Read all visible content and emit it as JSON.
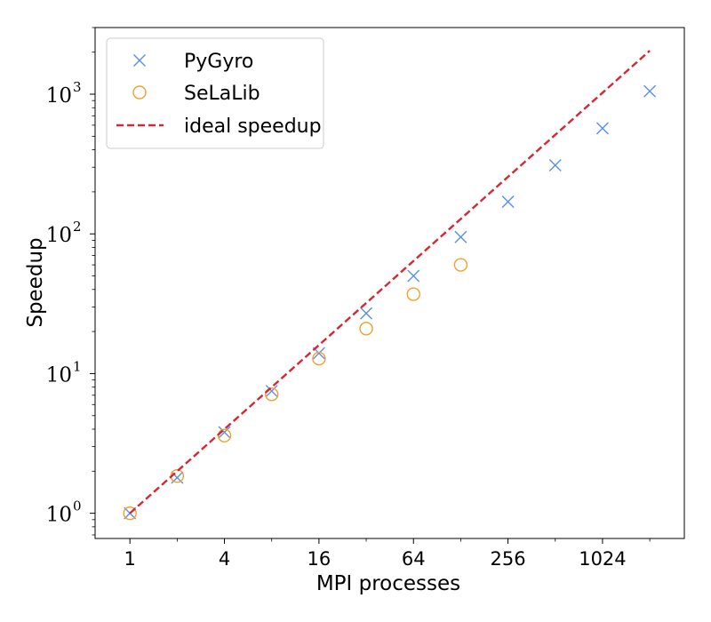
{
  "chart_data": {
    "type": "scatter",
    "title": "",
    "xlabel": "MPI processes",
    "ylabel": "Speedup",
    "x_scale": "log2",
    "y_scale": "log10",
    "xlim": [
      0.6,
      3400
    ],
    "ylim": [
      0.66,
      3000
    ],
    "x_ticks": [
      1,
      4,
      16,
      64,
      256,
      1024
    ],
    "x_tick_labels": [
      "1",
      "4",
      "16",
      "64",
      "256",
      "1024"
    ],
    "y_ticks": [
      1,
      10,
      100,
      1000
    ],
    "y_tick_labels": [
      {
        "base": "10",
        "exp": "0"
      },
      {
        "base": "10",
        "exp": "1"
      },
      {
        "base": "10",
        "exp": "2"
      },
      {
        "base": "10",
        "exp": "3"
      }
    ],
    "grid": false,
    "legend_position": "top-left",
    "series": [
      {
        "name": "PyGyro",
        "marker": "x",
        "color": "#5a8fe6",
        "x": [
          1,
          2,
          4,
          8,
          16,
          32,
          64,
          128,
          256,
          512,
          1024,
          2048
        ],
        "y": [
          1.0,
          1.8,
          3.8,
          7.5,
          14,
          27,
          50,
          95,
          170,
          310,
          570,
          1050
        ]
      },
      {
        "name": "SeLaLib",
        "marker": "circle",
        "color": "#f0a030",
        "x": [
          1,
          2,
          4,
          8,
          16,
          32,
          64,
          128
        ],
        "y": [
          1.0,
          1.85,
          3.6,
          7.1,
          12.8,
          21,
          37,
          60
        ]
      },
      {
        "name": "ideal speedup",
        "marker": "dashed-line",
        "color": "#d62834",
        "x": [
          1,
          2048
        ],
        "y": [
          1,
          2048
        ]
      }
    ]
  }
}
